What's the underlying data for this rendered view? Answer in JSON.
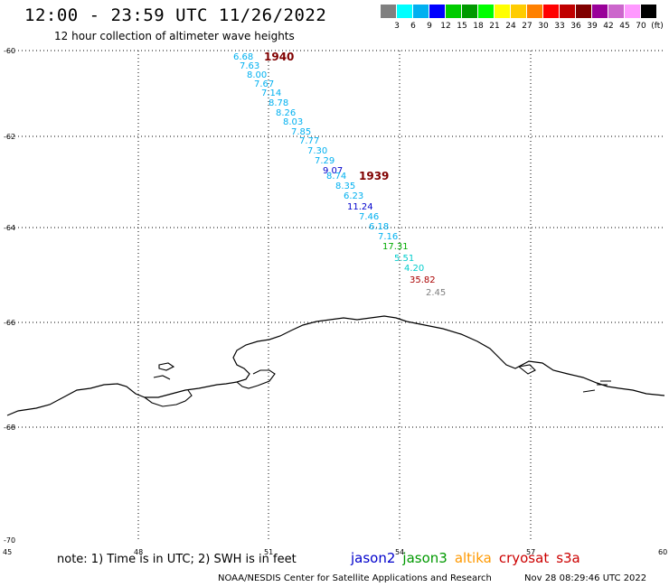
{
  "header": {
    "title": "12:00 - 23:59 UTC 11/26/2022",
    "subtitle": "12 hour collection of altimeter wave heights"
  },
  "scale": {
    "colors": [
      "#808080",
      "#00ffff",
      "#00b0f0",
      "#0000ff",
      "#00cc00",
      "#009900",
      "#00ff00",
      "#ffff00",
      "#ffcc00",
      "#ff8000",
      "#ff0000",
      "#c00000",
      "#800000",
      "#990099",
      "#cc66cc",
      "#ff99ff",
      "#000000"
    ],
    "labels": [
      "3",
      "6",
      "9",
      "12",
      "15",
      "18",
      "21",
      "24",
      "27",
      "30",
      "33",
      "36",
      "39",
      "42",
      "45",
      "70",
      "(ft)"
    ]
  },
  "axes": {
    "lat_labels": [
      "-60",
      "-62",
      "-64",
      "-66",
      "-68",
      "-70"
    ],
    "lon_labels": [
      "45",
      "48",
      "51",
      "54",
      "57",
      "60"
    ]
  },
  "passes": [
    {
      "label": "1940",
      "color": "#800000"
    },
    {
      "label": "1939",
      "color": "#800000"
    }
  ],
  "observations": [
    {
      "value": "6.68",
      "color": "#00b0f0"
    },
    {
      "value": "7.63",
      "color": "#00b0f0"
    },
    {
      "value": "8.00",
      "color": "#00b0f0"
    },
    {
      "value": "7.67",
      "color": "#00b0f0"
    },
    {
      "value": "7.14",
      "color": "#00b0f0"
    },
    {
      "value": "8.78",
      "color": "#00b0f0"
    },
    {
      "value": "8.26",
      "color": "#00b0f0"
    },
    {
      "value": "8.03",
      "color": "#00b0f0"
    },
    {
      "value": "7.85",
      "color": "#00b0f0"
    },
    {
      "value": "7.77",
      "color": "#00b0f0"
    },
    {
      "value": "7.30",
      "color": "#00b0f0"
    },
    {
      "value": "7.29",
      "color": "#00b0f0"
    },
    {
      "value": "9.07",
      "color": "#0000cc"
    },
    {
      "value": "8.74",
      "color": "#00b0f0"
    },
    {
      "value": "8.35",
      "color": "#00b0f0"
    },
    {
      "value": "6.23",
      "color": "#00b0f0"
    },
    {
      "value": "11.24",
      "color": "#0000cc"
    },
    {
      "value": "7.46",
      "color": "#00b0f0"
    },
    {
      "value": "6.18",
      "color": "#00b0f0"
    },
    {
      "value": "7.16",
      "color": "#00b0f0"
    },
    {
      "value": "17.31",
      "color": "#00aa00"
    },
    {
      "value": "5.51",
      "color": "#00cccc"
    },
    {
      "value": "4.20",
      "color": "#00cccc"
    },
    {
      "value": "35.82",
      "color": "#aa0000"
    },
    {
      "value": "2.45",
      "color": "#808080"
    }
  ],
  "footer": {
    "note": "note: 1) Time is in UTC; 2) SWH is in feet",
    "satellites": [
      {
        "name": "jason2",
        "color": "#0000cc"
      },
      {
        "name": "jason3",
        "color": "#009900"
      },
      {
        "name": "altika",
        "color": "#ff9900"
      },
      {
        "name": "cryosat",
        "color": "#cc0000"
      },
      {
        "name": "s3a",
        "color": "#cc0000"
      }
    ],
    "credit": "NOAA/NESDIS Center for Satellite Applications and Research",
    "timestamp": "Nov 28 08:29:46 UTC 2022"
  }
}
